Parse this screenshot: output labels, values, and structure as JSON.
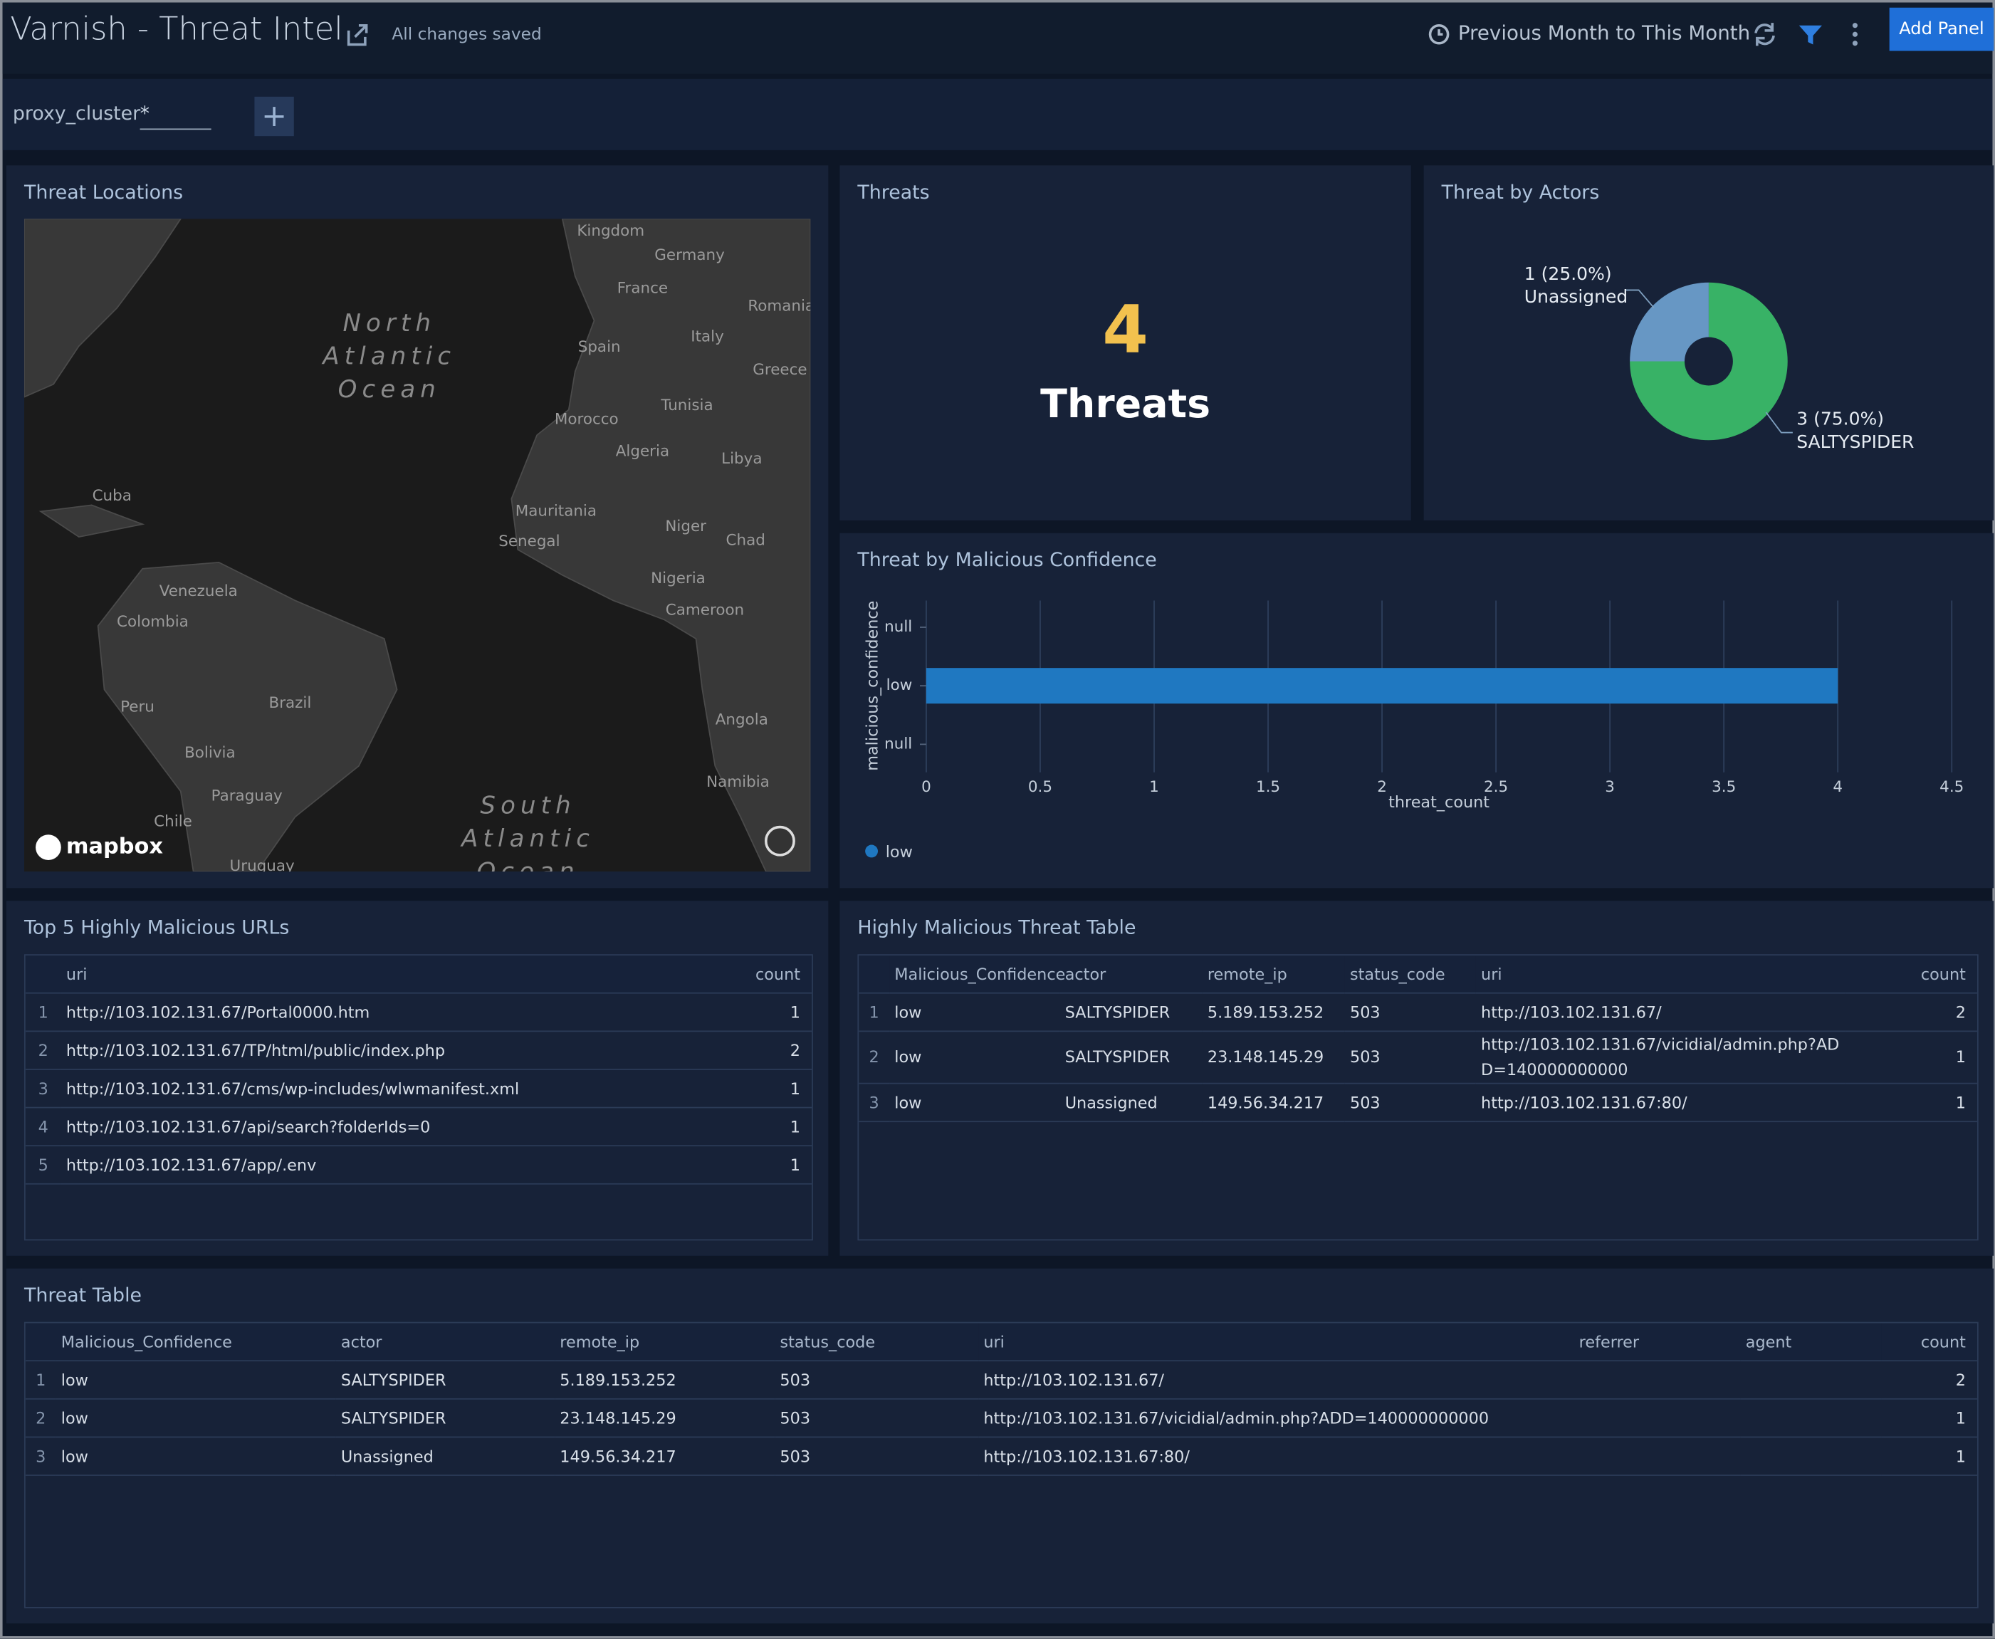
{
  "header": {
    "title": "Varnish - Threat Intel",
    "status": "All changes saved",
    "time_range": "Previous Month to This Month",
    "add_button": "Add Panel"
  },
  "filter": {
    "name": "proxy_cluster",
    "value": "*"
  },
  "map_panel": {
    "title": "Threat Locations",
    "attribution": "mapbox",
    "labels": [
      "Kingdom",
      "Germany",
      "France",
      "Spain",
      "Italy",
      "Romania",
      "Greece",
      "Morocco",
      "Tunisia",
      "Algeria",
      "Libya",
      "Cuba",
      "Mauritania",
      "Niger",
      "Chad",
      "Senegal",
      "Nigeria",
      "Cameroon",
      "Venezuela",
      "Colombia",
      "Peru",
      "Brazil",
      "Bolivia",
      "Paraguay",
      "Chile",
      "Angola",
      "Namibia",
      "Uruguay"
    ],
    "oceans": [
      [
        "North",
        "Atlantic",
        "Ocean"
      ],
      [
        "South",
        "Atlantic",
        "Ocean"
      ]
    ]
  },
  "threats_panel": {
    "title": "Threats",
    "value": 4,
    "unit": "Threats"
  },
  "chart_data": [
    {
      "type": "pie",
      "title": "Threat by Actors",
      "donut": true,
      "categories": [
        "Unassigned",
        "SALTYSPIDER"
      ],
      "values": [
        1,
        3
      ],
      "value_labels": [
        "1 (25.0%)",
        "3 (75.0%)"
      ],
      "colors": [
        "#6797c4",
        "#38b266"
      ]
    },
    {
      "type": "bar",
      "orientation": "horizontal",
      "title": "Threat by Malicious Confidence",
      "categories": [
        "null",
        "low",
        "null"
      ],
      "series": [
        {
          "name": "low",
          "color": "#1f78c1",
          "values": [
            null,
            4,
            null
          ]
        }
      ],
      "xlim": [
        0,
        4.5
      ],
      "xticks": [
        0,
        0.5,
        1,
        1.5,
        2,
        2.5,
        3,
        3.5,
        4,
        4.5
      ],
      "xlabel": "threat_count",
      "ylabel": "malicious_confidence",
      "grid": true,
      "legend": "bottom-left"
    }
  ],
  "tables": [
    {
      "title": "Top 5 Highly Malicious URLs",
      "columns": [
        "uri",
        "count"
      ],
      "rows": [
        [
          1,
          "http://103.102.131.67/Portal0000.htm",
          1
        ],
        [
          2,
          "http://103.102.131.67/TP/html/public/index.php",
          2
        ],
        [
          3,
          "http://103.102.131.67/cms/wp-includes/wlwmanifest.xml",
          1
        ],
        [
          4,
          "http://103.102.131.67/api/search?folderIds=0",
          1
        ],
        [
          5,
          "http://103.102.131.67/app/.env",
          1
        ]
      ]
    },
    {
      "title": "Highly Malicious Threat Table",
      "columns": [
        "Malicious_Confidence",
        "actor",
        "remote_ip",
        "status_code",
        "uri",
        "count"
      ],
      "rows": [
        [
          1,
          "low",
          "SALTYSPIDER",
          "5.189.153.252",
          503,
          "http://103.102.131.67/",
          2
        ],
        [
          2,
          "low",
          "SALTYSPIDER",
          "23.148.145.29",
          503,
          "http://103.102.131.67/vicidial/admin.php?ADD=140000000000",
          1
        ],
        [
          3,
          "low",
          "Unassigned",
          "149.56.34.217",
          503,
          "http://103.102.131.67:80/",
          1
        ]
      ]
    },
    {
      "title": "Threat Table",
      "columns": [
        "Malicious_Confidence",
        "actor",
        "remote_ip",
        "status_code",
        "uri",
        "referrer",
        "agent",
        "count"
      ],
      "rows": [
        [
          1,
          "low",
          "SALTYSPIDER",
          "5.189.153.252",
          503,
          "http://103.102.131.67/",
          null,
          null,
          2
        ],
        [
          2,
          "low",
          "SALTYSPIDER",
          "23.148.145.29",
          503,
          "http://103.102.131.67/vicidial/admin.php?ADD=140000000000",
          null,
          null,
          1
        ],
        [
          3,
          "low",
          "Unassigned",
          "149.56.34.217",
          503,
          "http://103.102.131.67:80/",
          null,
          null,
          1
        ]
      ]
    }
  ]
}
